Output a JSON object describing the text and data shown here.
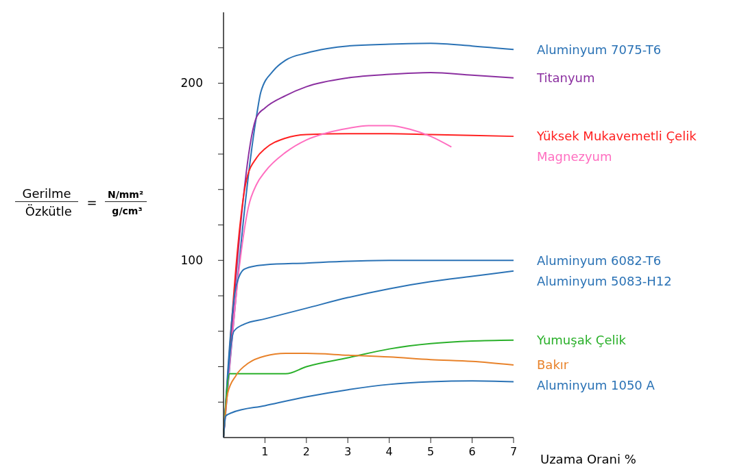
{
  "chart_data": {
    "type": "line",
    "ylabel": "Gerilme Özkütle = N/mm² g/cm³",
    "xlabel": "Uzama Orani %",
    "xlim": [
      0,
      7
    ],
    "xticks": [
      1,
      2,
      3,
      4,
      5,
      6,
      7
    ],
    "ylim": [
      0,
      240
    ],
    "yticks": [
      {
        "value": 20,
        "label": null
      },
      {
        "value": 40,
        "label": null
      },
      {
        "value": 60,
        "label": null
      },
      {
        "value": 80,
        "label": null
      },
      100,
      {
        "value": 120,
        "label": null
      },
      {
        "value": 140,
        "label": null
      },
      {
        "value": 160,
        "label": null
      },
      {
        "value": 180,
        "label": null
      },
      200,
      {
        "value": 220,
        "label": null
      }
    ],
    "grid": false,
    "legend": false,
    "marker": "none",
    "line_style": "solid",
    "series": [
      {
        "name": "Aluminyum 7075-T6",
        "color": "#2a72b5",
        "x": [
          0,
          0.8,
          0.9,
          1.2,
          1.5,
          2,
          2.5,
          3,
          4,
          5,
          6,
          7
        ],
        "values": [
          0,
          182,
          195,
          207,
          213,
          217,
          219.5,
          221,
          222,
          222.5,
          221,
          219
        ]
      },
      {
        "name": "Titanyum",
        "color": "#8b2fa0",
        "x": [
          0,
          0.8,
          1,
          1.5,
          2,
          3,
          4,
          5,
          6,
          7
        ],
        "values": [
          0,
          181,
          186,
          193,
          198,
          203,
          205,
          206,
          204.5,
          203
        ]
      },
      {
        "name": "Yüksek Mukavemetli Çelik",
        "color": "#ff2020",
        "x": [
          0,
          0.55,
          0.8,
          1,
          1.5,
          2,
          3,
          4,
          5,
          6,
          7
        ],
        "values": [
          0,
          145,
          158,
          163,
          169,
          171,
          171.5,
          171.5,
          171,
          170.5,
          170
        ]
      },
      {
        "name": "Magnezyum",
        "color": "#ff6ec0",
        "x": [
          0,
          0.4,
          0.6,
          0.8,
          1,
          1.5,
          2,
          2.5,
          3,
          3.5,
          4,
          4.5,
          5,
          5.5
        ],
        "values": [
          0,
          100,
          130,
          143,
          150,
          161,
          168,
          172,
          174.5,
          176,
          176,
          174,
          170,
          164
        ]
      },
      {
        "name": "Aluminyum 6082-T6",
        "color": "#2a72b5",
        "x": [
          0,
          0.3,
          0.5,
          0.8,
          1,
          2,
          3,
          4,
          5,
          6,
          7
        ],
        "values": [
          0,
          85,
          95,
          97,
          97.5,
          98.5,
          99.5,
          100,
          100,
          100,
          100
        ]
      },
      {
        "name": "Aluminyum 5083-H12",
        "color": "#2a72b5",
        "x": [
          0,
          0.25,
          0.5,
          1,
          2,
          3,
          4,
          5,
          6,
          7
        ],
        "values": [
          0,
          60,
          64,
          67,
          73,
          79,
          84,
          88,
          91,
          94
        ]
      },
      {
        "name": "Yumuşak Çelik",
        "color": "#2ab02a",
        "x": [
          0,
          0.15,
          1,
          1.5,
          2,
          3,
          4,
          5,
          6,
          7
        ],
        "values": [
          0,
          36,
          36,
          36,
          40,
          45,
          50,
          53,
          54.5,
          55
        ]
      },
      {
        "name": "Bakır",
        "color": "#e8822a",
        "x": [
          0,
          0.1,
          0.3,
          0.6,
          1,
          1.5,
          2,
          3,
          4,
          5,
          6,
          7
        ],
        "values": [
          0,
          25,
          35,
          42,
          46,
          47.5,
          47.5,
          46.5,
          45.5,
          44,
          43,
          41
        ]
      },
      {
        "name": "Aluminyum 1050 A",
        "color": "#2a72b5",
        "x": [
          0,
          0.05,
          0.2,
          1,
          2,
          3,
          4,
          5,
          6,
          7
        ],
        "values": [
          0,
          12,
          14,
          18,
          23,
          27,
          30,
          31.5,
          32,
          31.5
        ]
      }
    ]
  }
}
